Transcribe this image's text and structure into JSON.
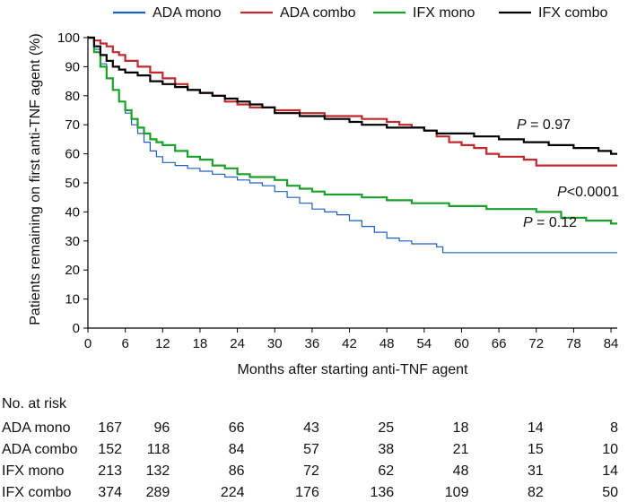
{
  "chart_data": {
    "type": "line",
    "step": true,
    "xlabel": "Months after starting anti-TNF agent",
    "ylabel": "Patients remaining on first anti-TNF agent (%)",
    "xlim": [
      0,
      85
    ],
    "ylim": [
      0,
      100
    ],
    "xticks": [
      0,
      6,
      12,
      18,
      24,
      30,
      36,
      42,
      48,
      54,
      60,
      66,
      72,
      78,
      84
    ],
    "yticks": [
      0,
      10,
      20,
      30,
      40,
      50,
      60,
      70,
      80,
      90,
      100
    ],
    "legend_position": "top",
    "series": [
      {
        "name": "ADA mono",
        "color": "#1f5fbf",
        "x": [
          0,
          1,
          2,
          3,
          4,
          5,
          6,
          7,
          8,
          9,
          10,
          11,
          12,
          14,
          16,
          18,
          20,
          22,
          24,
          26,
          28,
          30,
          32,
          34,
          36,
          38,
          40,
          42,
          44,
          46,
          48,
          50,
          52,
          54,
          56,
          57,
          60,
          66,
          72,
          78,
          84,
          85
        ],
        "y": [
          100,
          96,
          91,
          86,
          82,
          78,
          74,
          70,
          67,
          64,
          61,
          59,
          57,
          56,
          55,
          54,
          53,
          52,
          51,
          50,
          49,
          47,
          45,
          43,
          41,
          40,
          39,
          37,
          35,
          33,
          31,
          30,
          29,
          29,
          28,
          26,
          26,
          26,
          26,
          26,
          26,
          26
        ]
      },
      {
        "name": "ADA combo",
        "color": "#c0282d",
        "x": [
          0,
          1,
          2,
          3,
          4,
          5,
          6,
          8,
          10,
          12,
          14,
          16,
          18,
          20,
          22,
          24,
          26,
          28,
          30,
          32,
          34,
          36,
          38,
          40,
          42,
          44,
          46,
          48,
          50,
          52,
          54,
          56,
          58,
          60,
          62,
          64,
          66,
          68,
          70,
          72,
          76,
          80,
          84,
          85
        ],
        "y": [
          100,
          99,
          98,
          97,
          95,
          94,
          92,
          90,
          88,
          86,
          84,
          82,
          81,
          80,
          78,
          77,
          76,
          76,
          75,
          75,
          74,
          74,
          73,
          73,
          73,
          72,
          72,
          71,
          70,
          69,
          68,
          66,
          64,
          63,
          62,
          60,
          59,
          59,
          58,
          56,
          56,
          56,
          56,
          56
        ]
      },
      {
        "name": "IFX mono",
        "color": "#1aa02a",
        "x": [
          0,
          1,
          2,
          3,
          4,
          5,
          6,
          7,
          8,
          9,
          10,
          11,
          12,
          14,
          16,
          18,
          20,
          22,
          24,
          26,
          28,
          30,
          32,
          34,
          36,
          38,
          40,
          42,
          44,
          46,
          48,
          50,
          52,
          54,
          56,
          58,
          60,
          64,
          68,
          72,
          76,
          80,
          84,
          85
        ],
        "y": [
          100,
          95,
          90,
          86,
          82,
          78,
          75,
          72,
          69,
          67,
          65,
          64,
          63,
          61,
          59,
          58,
          56,
          55,
          53,
          52,
          52,
          51,
          49,
          48,
          47,
          46,
          46,
          46,
          45,
          45,
          44,
          44,
          43,
          43,
          43,
          42,
          42,
          41,
          41,
          40,
          38,
          37,
          36,
          36
        ]
      },
      {
        "name": "IFX combo",
        "color": "#000000",
        "x": [
          0,
          1,
          2,
          3,
          4,
          5,
          6,
          8,
          10,
          12,
          14,
          16,
          18,
          20,
          22,
          24,
          26,
          28,
          30,
          32,
          34,
          36,
          38,
          40,
          42,
          44,
          46,
          48,
          50,
          52,
          54,
          56,
          58,
          60,
          62,
          64,
          66,
          68,
          70,
          72,
          74,
          76,
          78,
          80,
          82,
          84,
          85
        ],
        "y": [
          100,
          97,
          94,
          92,
          90,
          89,
          88,
          87,
          85,
          84,
          83,
          82,
          81,
          80,
          79,
          78,
          77,
          76,
          74,
          74,
          73,
          73,
          72,
          72,
          71,
          70,
          70,
          69,
          69,
          69,
          68,
          67,
          67,
          67,
          66,
          66,
          65,
          65,
          64,
          64,
          63,
          63,
          62,
          62,
          61,
          60,
          60
        ]
      }
    ],
    "annotations": [
      {
        "name": "p-ada",
        "text_italic": "P",
        "text_rest": " = 0.97",
        "at": [
          84,
          68
        ]
      },
      {
        "name": "p-ifx-mono",
        "text_italic": "P",
        "text_rest": "<0.0001",
        "at": [
          84,
          45
        ]
      },
      {
        "name": "p-ada-mono",
        "text_italic": "P",
        "text_rest": " = 0.12",
        "at": [
          66,
          36
        ]
      }
    ],
    "risk_table": {
      "title": "No. at risk",
      "times": [
        0,
        12,
        24,
        36,
        48,
        60,
        72,
        84
      ],
      "rows": [
        {
          "label": "ADA mono",
          "values": [
            167,
            96,
            66,
            43,
            25,
            18,
            14,
            8
          ]
        },
        {
          "label": "ADA combo",
          "values": [
            152,
            118,
            84,
            57,
            38,
            21,
            15,
            10
          ]
        },
        {
          "label": "IFX mono",
          "values": [
            213,
            132,
            86,
            72,
            62,
            48,
            31,
            14
          ]
        },
        {
          "label": "IFX combo",
          "values": [
            374,
            289,
            224,
            176,
            136,
            109,
            82,
            50
          ]
        }
      ]
    }
  }
}
